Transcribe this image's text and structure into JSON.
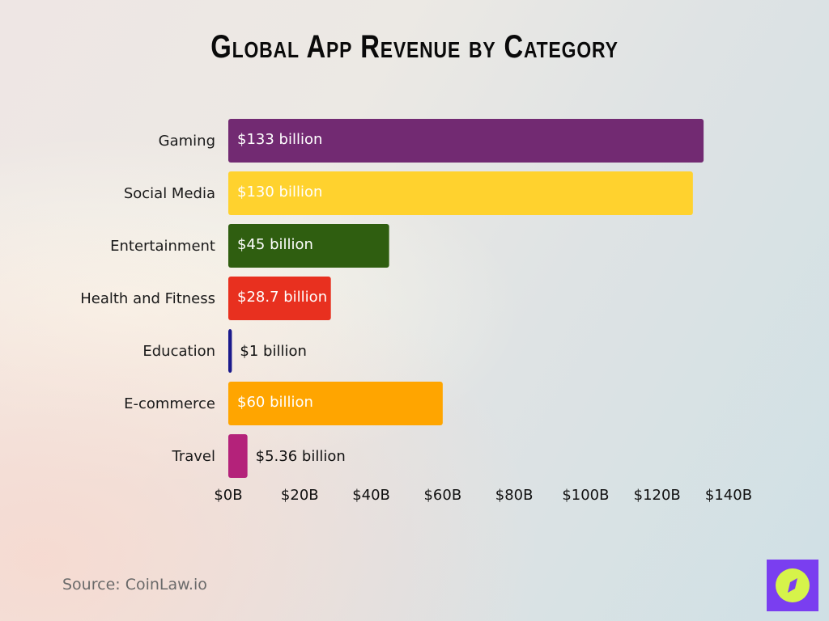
{
  "chart_data": {
    "type": "bar",
    "orientation": "horizontal",
    "title": "Global App Revenue by Category",
    "categories": [
      "Gaming",
      "Social Media",
      "Entertainment",
      "Health and Fitness",
      "Education",
      "E-commerce",
      "Travel"
    ],
    "values": [
      133,
      130,
      45,
      28.7,
      1,
      60,
      5.36
    ],
    "data_labels": [
      "$133 billion",
      "$130 billion",
      "$45 billion",
      "$28.7 billion",
      "$1 billion",
      "$60 billion",
      "$5.36 billion"
    ],
    "colors": [
      "#722a72",
      "#ffd22e",
      "#2f5e10",
      "#e8301f",
      "#1b1a8c",
      "#ffa500",
      "#b4227a"
    ],
    "xlim": [
      0,
      140
    ],
    "xticks": [
      0,
      20,
      40,
      60,
      80,
      100,
      120,
      140
    ],
    "xtick_labels": [
      "$0B",
      "$20B",
      "$40B",
      "$60B",
      "$80B",
      "$100B",
      "$120B",
      "$140B"
    ],
    "xlabel": "",
    "ylabel": "",
    "grid": false,
    "legend": "none"
  },
  "source": "Source: CoinLaw.io",
  "logo": {
    "icon": "compass-icon",
    "bg": "#7a3ef0",
    "fg": "#d6f34a"
  }
}
